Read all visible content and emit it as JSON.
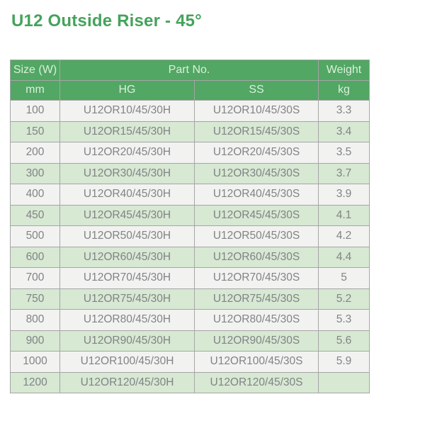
{
  "page": {
    "title": "U12 Outside Riser - 45°"
  },
  "colors": {
    "header_green": "#51a763",
    "title_green": "#44a35c",
    "row_alt_green": "#d7e8d3",
    "row_gray": "#f2f2f1",
    "border_gray": "#a6a6a6",
    "cell_text": "#818385",
    "header_text": "#dcefdd"
  },
  "table": {
    "header": {
      "size_group": "Size (W)",
      "part_no_group": "Part No.",
      "weight_group": "Weight",
      "size_unit": "mm",
      "hg": "HG",
      "ss": "SS",
      "weight_unit": "kg"
    },
    "rows": [
      {
        "size": "100",
        "hg": "U12OR10/45/30H",
        "ss": "U12OR10/45/30S",
        "weight": "3.3"
      },
      {
        "size": "150",
        "hg": "U12OR15/45/30H",
        "ss": "U12OR15/45/30S",
        "weight": "3.4"
      },
      {
        "size": "200",
        "hg": "U12OR20/45/30H",
        "ss": "U12OR20/45/30S",
        "weight": "3.5"
      },
      {
        "size": "300",
        "hg": "U12OR30/45/30H",
        "ss": "U12OR30/45/30S",
        "weight": "3.7"
      },
      {
        "size": "400",
        "hg": "U12OR40/45/30H",
        "ss": "U12OR40/45/30S",
        "weight": "3.9"
      },
      {
        "size": "450",
        "hg": "U12OR45/45/30H",
        "ss": "U12OR45/45/30S",
        "weight": "4.1"
      },
      {
        "size": "500",
        "hg": "U12OR50/45/30H",
        "ss": "U12OR50/45/30S",
        "weight": "4.2"
      },
      {
        "size": "600",
        "hg": "U12OR60/45/30H",
        "ss": "U12OR60/45/30S",
        "weight": "4.4"
      },
      {
        "size": "700",
        "hg": "U12OR70/45/30H",
        "ss": "U12OR70/45/30S",
        "weight": "5"
      },
      {
        "size": "750",
        "hg": "U12OR75/45/30H",
        "ss": "U12OR75/45/30S",
        "weight": "5.2"
      },
      {
        "size": "800",
        "hg": "U12OR80/45/30H",
        "ss": "U12OR80/45/30S",
        "weight": "5.3"
      },
      {
        "size": "900",
        "hg": "U12OR90/45/30H",
        "ss": "U12OR90/45/30S",
        "weight": "5.6"
      },
      {
        "size": "1000",
        "hg": "U12OR100/45/30H",
        "ss": "U12OR100/45/30S",
        "weight": "5.9"
      },
      {
        "size": "1200",
        "hg": "U12OR120/45/30H",
        "ss": "U12OR120/45/30S",
        "weight": ""
      }
    ]
  }
}
